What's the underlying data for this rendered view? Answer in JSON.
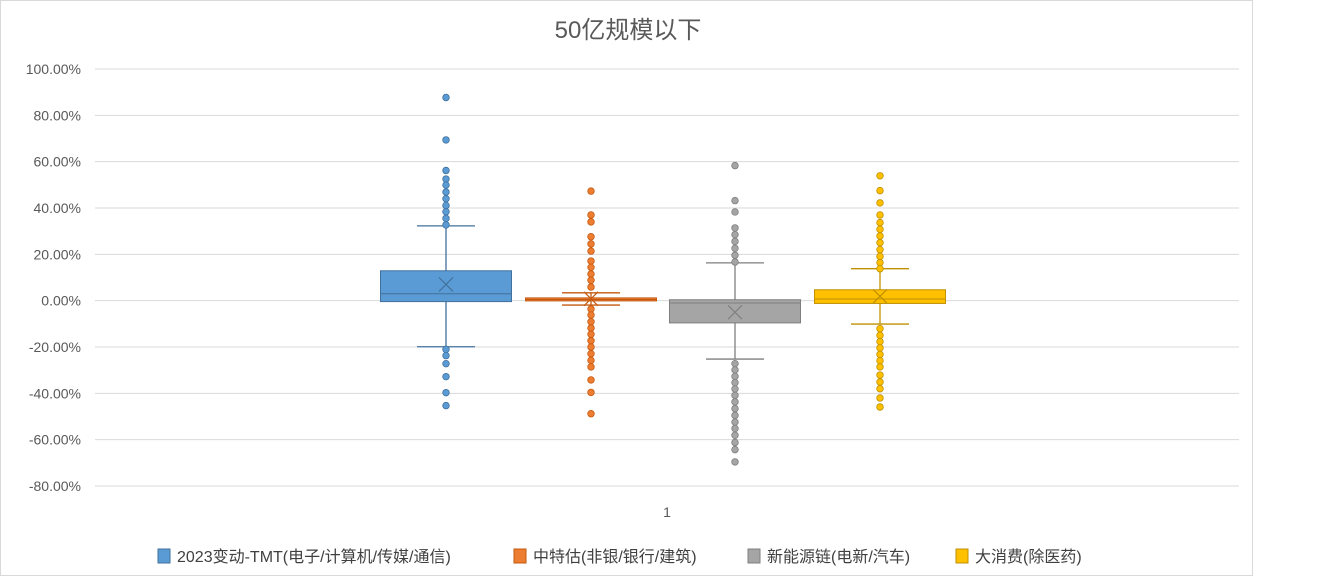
{
  "chart_data": {
    "type": "box",
    "title": "50亿规模以下",
    "categories": [
      "1"
    ],
    "ylim": [
      -80,
      100
    ],
    "y_ticks": [
      "100.00%",
      "80.00%",
      "60.00%",
      "40.00%",
      "20.00%",
      "0.00%",
      "-20.00%",
      "-40.00%",
      "-60.00%",
      "-80.00%"
    ],
    "y_tick_values": [
      100,
      80,
      60,
      40,
      20,
      0,
      -20,
      -40,
      -60,
      -80
    ],
    "y_unit": "%",
    "grid": true,
    "legend_position": "bottom",
    "series": [
      {
        "name": "2023变动-TMT(电子/计算机/传媒/通信)",
        "color": "#5B9BD5",
        "stroke": "#41719C",
        "q1": -0.4,
        "median": 3.0,
        "q3": 12.9,
        "mean": 7.0,
        "whisker_low": -19.9,
        "whisker_high": 32.3,
        "outliers": [
          87.7,
          69.4,
          56.2,
          52.5,
          49.9,
          46.9,
          44.0,
          41.1,
          38.4,
          35.5,
          32.7,
          -21.0,
          -23.7,
          -27.2,
          -32.8,
          -39.7,
          -45.3
        ]
      },
      {
        "name": "中特估(非银/银行/建筑)",
        "color": "#ED7D31",
        "stroke": "#C55A11",
        "q1": -0.1,
        "median": 0.5,
        "q3": 1.2,
        "mean": 0.8,
        "whisker_low": -1.9,
        "whisker_high": 3.4,
        "outliers": [
          47.3,
          37.0,
          34.0,
          27.6,
          24.5,
          21.4,
          17.1,
          14.4,
          11.5,
          8.8,
          5.9,
          -3.6,
          -6.2,
          -9.1,
          -11.8,
          -14.5,
          -17.3,
          -20.0,
          -22.9,
          -25.8,
          -28.6,
          -34.2,
          -39.6,
          -48.8
        ]
      },
      {
        "name": "新能源链(电新/汽车)",
        "color": "#A5A5A5",
        "stroke": "#7F7F7F",
        "q1": -9.6,
        "median": -1.0,
        "q3": 0.4,
        "mean": -5.0,
        "whisker_low": -25.2,
        "whisker_high": 16.3,
        "outliers": [
          58.3,
          43.2,
          38.3,
          31.4,
          28.5,
          25.6,
          22.6,
          19.6,
          16.7,
          -27.2,
          -29.9,
          -32.7,
          -35.4,
          -38.1,
          -40.9,
          -43.7,
          -46.6,
          -49.5,
          -52.4,
          -55.2,
          -58.1,
          -61.2,
          -64.3,
          -69.6
        ]
      },
      {
        "name": "大消费(除医药)",
        "color": "#FFC000",
        "stroke": "#BF9000",
        "q1": -1.2,
        "median": 0.7,
        "q3": 4.7,
        "mean": 1.9,
        "whisker_low": -10.1,
        "whisker_high": 13.8,
        "outliers": [
          53.9,
          47.5,
          42.2,
          37.0,
          33.7,
          30.8,
          27.9,
          25.0,
          22.0,
          19.1,
          16.4,
          13.8,
          -12.1,
          -15.0,
          -17.7,
          -20.4,
          -23.2,
          -25.9,
          -28.6,
          -32.1,
          -35.1,
          -38.0,
          -42.0,
          -45.9
        ]
      }
    ]
  }
}
